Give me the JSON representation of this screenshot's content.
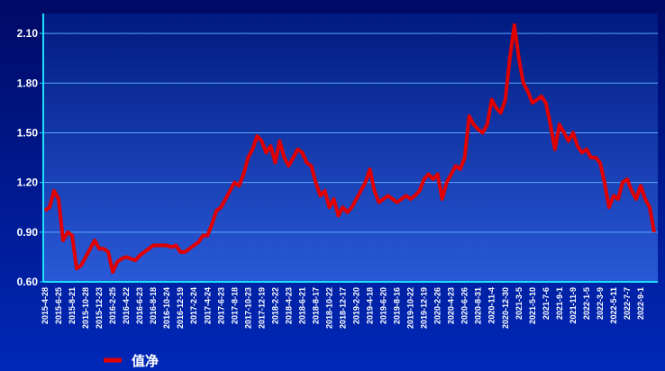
{
  "chart_data": {
    "type": "line",
    "categories": [
      "2015-4-28",
      null,
      null,
      "2015-6-25",
      null,
      null,
      "2015-8-21",
      null,
      null,
      "2015-10-28",
      null,
      null,
      "2015-12-23",
      null,
      null,
      "2016-2-25",
      null,
      null,
      "2016-4-22",
      null,
      null,
      "2016-6-23",
      null,
      null,
      "2016-8-18",
      null,
      null,
      "2016-10-24",
      null,
      null,
      "2016-12-19",
      null,
      null,
      "2017-2-24",
      null,
      null,
      "2017-4-24",
      null,
      null,
      "2017-6-23",
      null,
      null,
      "2017-8-18",
      null,
      null,
      "2017-10-23",
      null,
      null,
      "2017-12-19",
      null,
      null,
      "2018-2-22",
      null,
      null,
      "2018-4-23",
      null,
      null,
      "2018-6-21",
      null,
      null,
      "2018-8-17",
      null,
      null,
      "2018-10-22",
      null,
      null,
      "2018-12-17",
      null,
      null,
      "2019-2-20",
      null,
      null,
      "2019-4-18",
      null,
      null,
      "2019-6-20",
      null,
      null,
      "2019-8-16",
      null,
      null,
      "2019-10-22",
      null,
      null,
      "2019-12-19",
      null,
      null,
      "2020-2-26",
      null,
      null,
      "2020-4-23",
      null,
      null,
      "2020-6-26",
      null,
      null,
      "2020-8-31",
      null,
      null,
      "2020-11-4",
      null,
      null,
      "2020-12-30",
      null,
      null,
      "2021-3-5",
      null,
      null,
      "2021-5-10",
      null,
      null,
      "2021-7-6",
      null,
      null,
      "2021-9-1",
      null,
      null,
      "2021-11-9",
      null,
      null,
      "2022-1-5",
      null,
      null,
      "2022-3-9",
      null,
      null,
      "2022-5-11",
      null,
      null,
      "2022-7-7",
      null,
      null,
      "2022-9-1",
      null,
      null,
      null
    ],
    "series": [
      {
        "name": "值净",
        "color": "#e00000",
        "values": [
          1.03,
          1.05,
          1.15,
          1.1,
          0.85,
          0.9,
          0.88,
          0.68,
          0.7,
          0.75,
          0.8,
          0.85,
          0.8,
          0.8,
          0.78,
          0.66,
          0.72,
          0.74,
          0.75,
          0.74,
          0.73,
          0.76,
          0.78,
          0.8,
          0.82,
          0.82,
          0.82,
          0.82,
          0.81,
          0.82,
          0.78,
          0.78,
          0.8,
          0.82,
          0.84,
          0.88,
          0.88,
          0.95,
          1.03,
          1.05,
          1.1,
          1.15,
          1.2,
          1.18,
          1.25,
          1.35,
          1.4,
          1.48,
          1.45,
          1.38,
          1.42,
          1.32,
          1.45,
          1.35,
          1.3,
          1.35,
          1.4,
          1.38,
          1.32,
          1.3,
          1.2,
          1.12,
          1.15,
          1.05,
          1.1,
          1.0,
          1.05,
          1.02,
          1.05,
          1.1,
          1.15,
          1.2,
          1.28,
          1.15,
          1.08,
          1.1,
          1.12,
          1.1,
          1.08,
          1.1,
          1.12,
          1.1,
          1.12,
          1.15,
          1.22,
          1.25,
          1.22,
          1.25,
          1.1,
          1.2,
          1.25,
          1.3,
          1.28,
          1.35,
          1.6,
          1.55,
          1.52,
          1.5,
          1.55,
          1.7,
          1.65,
          1.62,
          1.7,
          1.95,
          2.15,
          1.95,
          1.8,
          1.75,
          1.68,
          1.7,
          1.72,
          1.68,
          1.55,
          1.4,
          1.55,
          1.5,
          1.45,
          1.5,
          1.42,
          1.38,
          1.4,
          1.35,
          1.35,
          1.32,
          1.2,
          1.05,
          1.12,
          1.1,
          1.2,
          1.22,
          1.15,
          1.1,
          1.18,
          1.1,
          1.05,
          0.9
        ]
      }
    ],
    "ylim": [
      0.6,
      2.22
    ],
    "yticks": [
      {
        "value": 0.6,
        "label": "0.60"
      },
      {
        "value": 0.9,
        "label": "0.90"
      },
      {
        "value": 1.2,
        "label": "1.20"
      },
      {
        "value": 1.5,
        "label": "1.50"
      },
      {
        "value": 1.8,
        "label": "1.80"
      },
      {
        "value": 2.1,
        "label": "2.10"
      }
    ],
    "grid": true
  }
}
